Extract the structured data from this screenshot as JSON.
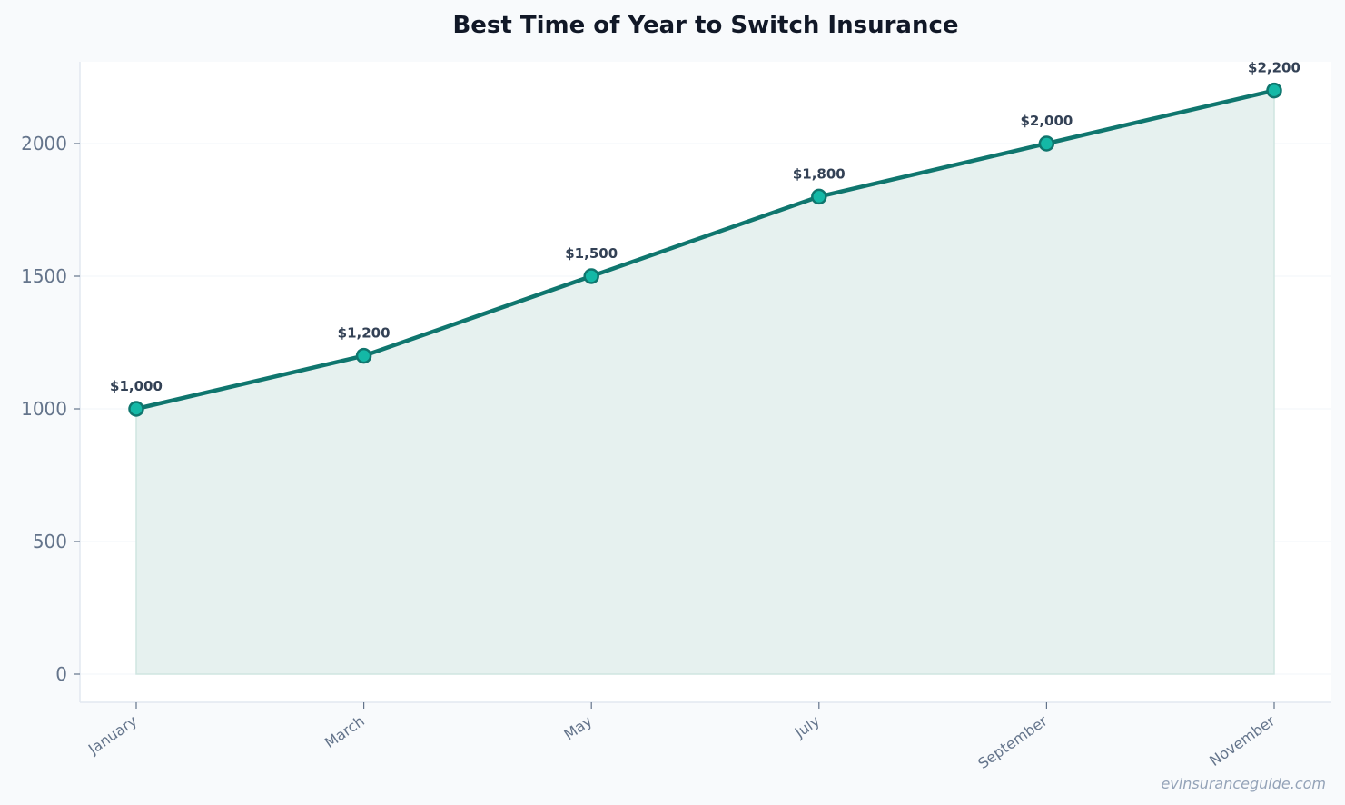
{
  "chart_data": {
    "type": "area",
    "title": "Best Time of Year to Switch Insurance",
    "xlabel": "",
    "ylabel": "",
    "categories": [
      "January",
      "March",
      "May",
      "July",
      "September",
      "November"
    ],
    "values": [
      1000,
      1200,
      1500,
      1800,
      2000,
      2200
    ],
    "data_labels": [
      "$1,000",
      "$1,200",
      "$1,500",
      "$1,800",
      "$2,000",
      "$2,200"
    ],
    "yticks": [
      0,
      500,
      1000,
      1500,
      2000
    ],
    "ylim": [
      -105,
      2310
    ],
    "grid": true,
    "legend": "none",
    "colors": {
      "line": "#0f766e",
      "marker": "#14b8a6",
      "fill": "#e6f1ef",
      "background": "#f8fafc",
      "plot": "#ffffff"
    }
  },
  "watermark": "evinsuranceguide.com"
}
